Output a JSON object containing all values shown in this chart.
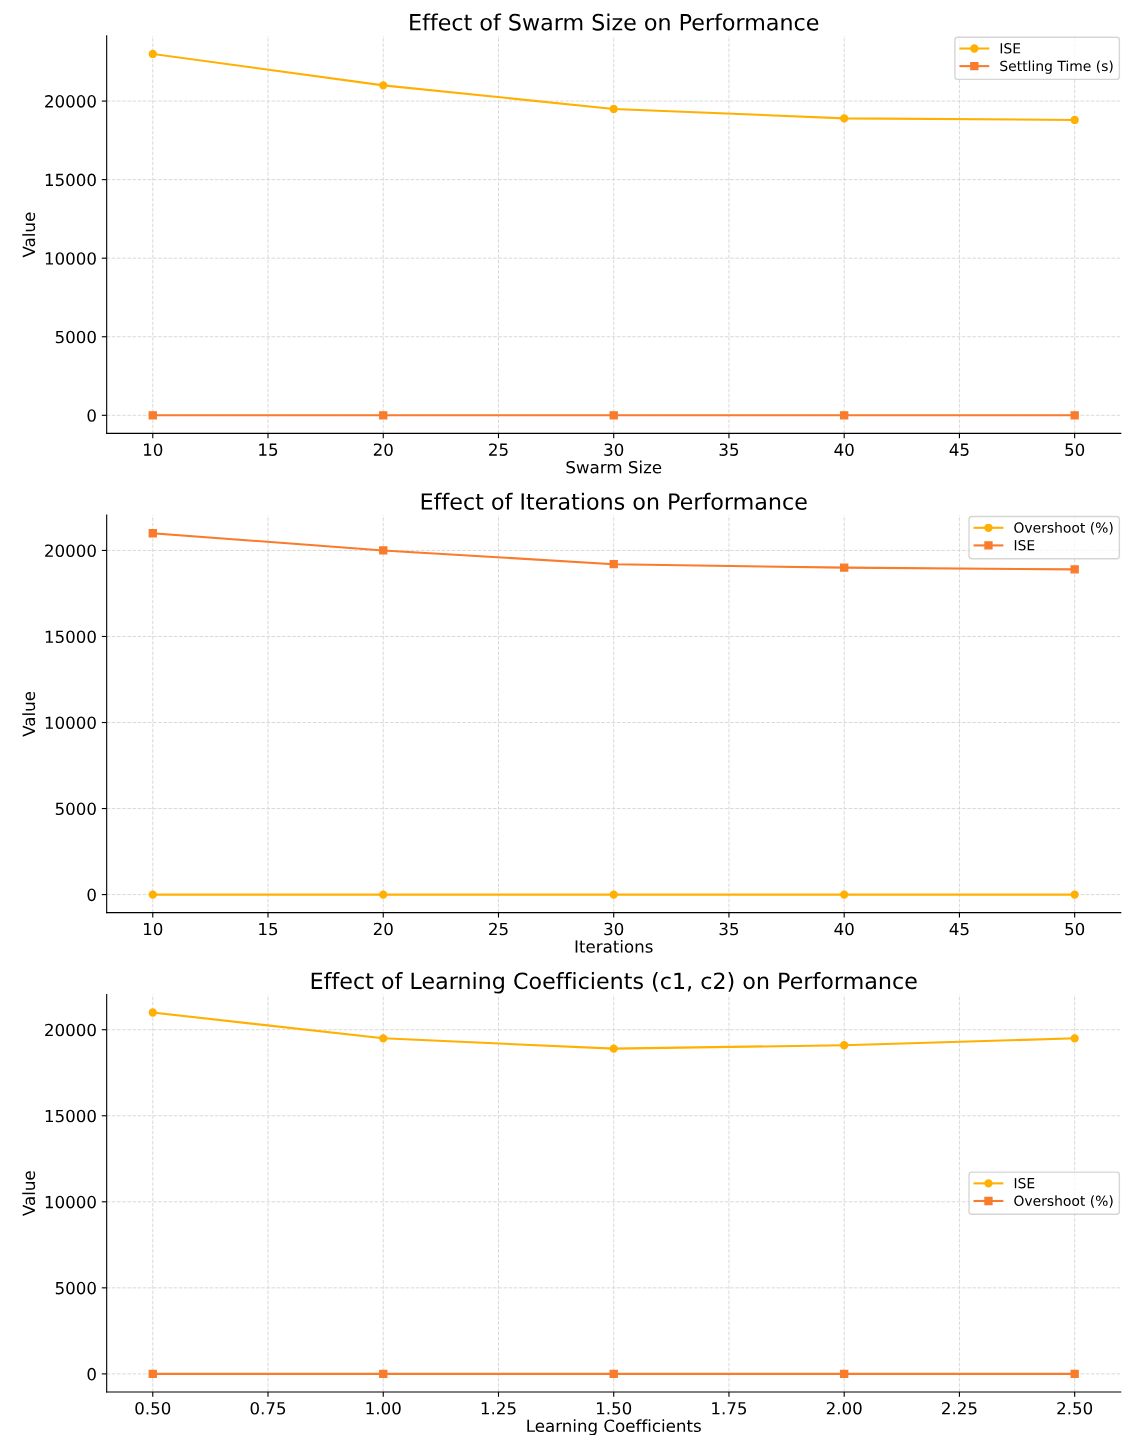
{
  "chart_data": [
    {
      "type": "line",
      "title": "Effect of Swarm Size on Performance",
      "xlabel": "Swarm Size",
      "ylabel": "Value",
      "x": [
        10,
        20,
        30,
        40,
        50
      ],
      "xlim": [
        8,
        52
      ],
      "xticks": [
        10,
        15,
        20,
        25,
        30,
        35,
        40,
        45,
        50
      ],
      "ylim": [
        -1150,
        24150
      ],
      "yticks": [
        0,
        5000,
        10000,
        15000,
        20000
      ],
      "grid": true,
      "legend": "top right",
      "series": [
        {
          "name": "ISE",
          "color": "#ffb000",
          "marker": "circle",
          "values": [
            23000,
            21000,
            19500,
            18900,
            18800
          ]
        },
        {
          "name": "Settling Time (s)",
          "color": "#f97b2c",
          "marker": "square",
          "values": [
            0,
            0,
            0,
            0,
            0
          ]
        }
      ]
    },
    {
      "type": "line",
      "title": "Effect of Iterations on Performance",
      "xlabel": "Iterations",
      "ylabel": "Value",
      "x": [
        10,
        20,
        30,
        40,
        50
      ],
      "xlim": [
        8,
        52
      ],
      "xticks": [
        10,
        15,
        20,
        25,
        30,
        35,
        40,
        45,
        50
      ],
      "ylim": [
        -1050,
        22050
      ],
      "yticks": [
        0,
        5000,
        10000,
        15000,
        20000
      ],
      "grid": true,
      "legend": "top right",
      "series": [
        {
          "name": "Overshoot (%)",
          "color": "#ffb000",
          "marker": "circle",
          "values": [
            0,
            0,
            0,
            0,
            0
          ]
        },
        {
          "name": "ISE",
          "color": "#f97b2c",
          "marker": "square",
          "values": [
            21000,
            20000,
            19200,
            19000,
            18900
          ]
        }
      ]
    },
    {
      "type": "line",
      "title": "Effect of Learning Coefficients (c1, c2) on Performance",
      "xlabel": "Learning Coefficients",
      "ylabel": "Value",
      "x": [
        0.5,
        1.0,
        1.5,
        2.0,
        2.5
      ],
      "xlim": [
        0.4,
        2.6
      ],
      "xticks": [
        {
          "value": 0.5,
          "label": "0.50"
        },
        {
          "value": 0.75,
          "label": "0.75"
        },
        {
          "value": 1.0,
          "label": "1.00"
        },
        {
          "value": 1.25,
          "label": "1.25"
        },
        {
          "value": 1.5,
          "label": "1.50"
        },
        {
          "value": 1.75,
          "label": "1.75"
        },
        {
          "value": 2.0,
          "label": "2.00"
        },
        {
          "value": 2.25,
          "label": "2.25"
        },
        {
          "value": 2.5,
          "label": "2.50"
        }
      ],
      "ylim": [
        -1050,
        22050
      ],
      "yticks": [
        0,
        5000,
        10000,
        15000,
        20000
      ],
      "grid": true,
      "legend": "center right",
      "series": [
        {
          "name": "ISE",
          "color": "#ffb000",
          "marker": "circle",
          "values": [
            21000,
            19500,
            18900,
            19100,
            19500
          ]
        },
        {
          "name": "Overshoot (%)",
          "color": "#f97b2c",
          "marker": "square",
          "values": [
            0,
            0,
            0,
            0,
            0
          ]
        }
      ]
    }
  ]
}
